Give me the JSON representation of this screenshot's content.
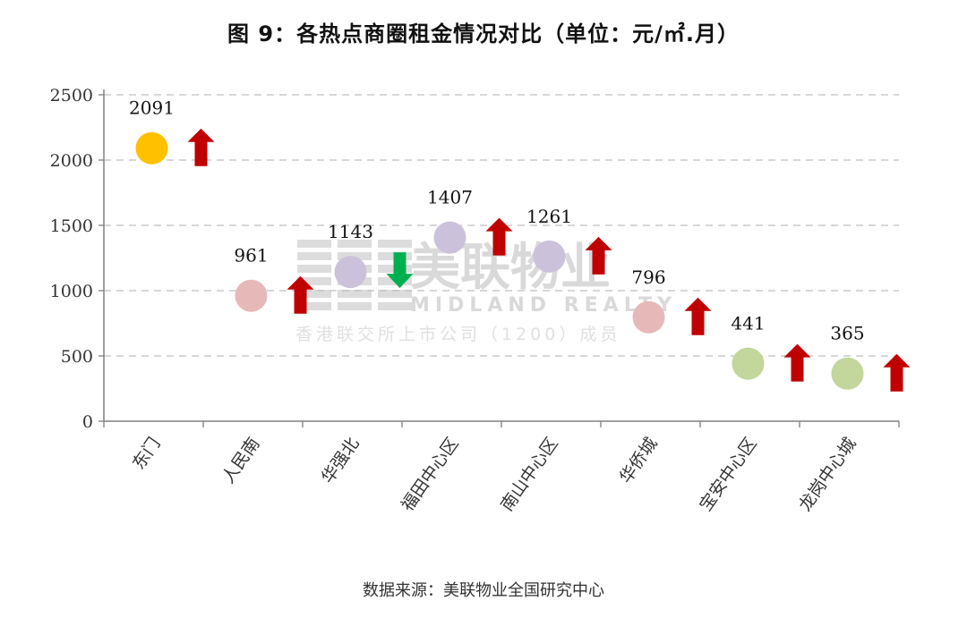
{
  "title": "图 9：各热点商圈租金情况对比（单位：元/㎡.月）",
  "source": "数据来源：美联物业全国研究中心",
  "watermark": {
    "brand_cn": "美联物业",
    "brand_en": "MIDLAND REALTY",
    "tagline": "香港联交所上市公司（1200）成员"
  },
  "colors": {
    "gold": "#FFC000",
    "pink": "#E6B9B8",
    "lavender": "#CCC1DA",
    "green": "#C3D69B",
    "arrow_up": "#C00000",
    "arrow_down": "#00B050",
    "grid": "#BFBFBF",
    "axis": "#808080"
  },
  "chart_data": {
    "type": "scatter",
    "title": "图 9：各热点商圈租金情况对比（单位：元/㎡.月）",
    "xlabel": "",
    "ylabel": "",
    "ylim": [
      0,
      2500
    ],
    "yticks": [
      0,
      500,
      1000,
      1500,
      2000,
      2500
    ],
    "grid": true,
    "legend": "none",
    "categories": [
      "东门",
      "人民南",
      "华强北",
      "福田中心区",
      "南山中心区",
      "华侨城",
      "宝安中心区",
      "龙岗中心城"
    ],
    "values": [
      2091,
      961,
      1143,
      1407,
      1261,
      796,
      441,
      365
    ],
    "trend": [
      "up",
      "up",
      "down",
      "up",
      "up",
      "up",
      "up",
      "up"
    ],
    "point_colors": [
      "#FFC000",
      "#E6B9B8",
      "#CCC1DA",
      "#CCC1DA",
      "#CCC1DA",
      "#E6B9B8",
      "#C3D69B",
      "#C3D69B"
    ],
    "annotations": "Data labels above each point; red up-arrow / green down-arrow to the right of each point indicates rent change direction"
  }
}
